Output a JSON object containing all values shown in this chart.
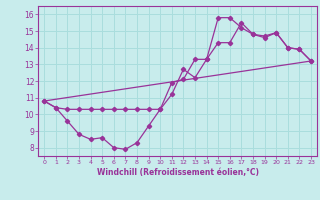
{
  "xlabel": "Windchill (Refroidissement éolien,°C)",
  "background_color": "#c8ecec",
  "line_color": "#993399",
  "grid_color": "#aadddd",
  "xlim": [
    -0.5,
    23.5
  ],
  "ylim": [
    7.5,
    16.5
  ],
  "yticks": [
    8,
    9,
    10,
    11,
    12,
    13,
    14,
    15,
    16
  ],
  "xticks": [
    0,
    1,
    2,
    3,
    4,
    5,
    6,
    7,
    8,
    9,
    10,
    11,
    12,
    13,
    14,
    15,
    16,
    17,
    18,
    19,
    20,
    21,
    22,
    23
  ],
  "series1_x": [
    0,
    1,
    2,
    3,
    4,
    5,
    6,
    7,
    8,
    9,
    10,
    11,
    12,
    13,
    14,
    15,
    16,
    17,
    18,
    19,
    20,
    21,
    22,
    23
  ],
  "series1_y": [
    10.8,
    10.4,
    9.6,
    8.8,
    8.5,
    8.6,
    8.0,
    7.9,
    8.3,
    9.3,
    10.3,
    11.2,
    12.7,
    12.2,
    13.3,
    15.8,
    15.8,
    15.2,
    14.8,
    14.7,
    14.9,
    14.0,
    13.9,
    13.2
  ],
  "series2_x": [
    0,
    1,
    2,
    3,
    4,
    5,
    6,
    7,
    8,
    9,
    10,
    11,
    12,
    13,
    14,
    15,
    16,
    17,
    18,
    19,
    20,
    21,
    22,
    23
  ],
  "series2_y": [
    10.8,
    10.4,
    10.3,
    10.3,
    10.3,
    10.3,
    10.3,
    10.3,
    10.3,
    10.3,
    10.3,
    11.9,
    12.1,
    13.3,
    13.3,
    14.3,
    14.3,
    15.5,
    14.8,
    14.6,
    14.9,
    14.0,
    13.9,
    13.2
  ],
  "series3_x": [
    0,
    23
  ],
  "series3_y": [
    10.8,
    13.2
  ]
}
